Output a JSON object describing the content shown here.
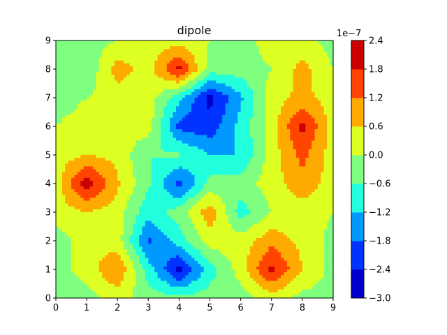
{
  "chart_data": {
    "type": "contourf",
    "title": "dipole",
    "xlabel": "",
    "ylabel": "",
    "xlim": [
      0,
      9
    ],
    "ylim": [
      0,
      9
    ],
    "x_ticks": [
      "0",
      "1",
      "2",
      "3",
      "4",
      "5",
      "6",
      "7",
      "8",
      "9"
    ],
    "y_ticks": [
      "0",
      "1",
      "2",
      "3",
      "4",
      "5",
      "6",
      "7",
      "8",
      "9"
    ],
    "colorbar": {
      "offset_label": "1e−7",
      "tick_labels": [
        "−3.0",
        "−2.4",
        "−1.8",
        "−1.2",
        "−0.6",
        "0.0",
        "0.6",
        "1.2",
        "1.8",
        "2.4"
      ],
      "levels": [
        -3.0,
        -2.4,
        -1.8,
        -1.2,
        -0.6,
        0.0,
        0.6,
        1.2,
        1.8,
        2.4
      ],
      "colors": [
        "#0000cc",
        "#0033ff",
        "#0099ff",
        "#22ffdd",
        "#7fff7f",
        "#ddff22",
        "#ffaa00",
        "#ff4400",
        "#cc0000"
      ]
    },
    "colormap": "jet",
    "grid_x": [
      0,
      1,
      2,
      3,
      4,
      5,
      6,
      7,
      8,
      9
    ],
    "grid_y": [
      0,
      1,
      2,
      3,
      4,
      5,
      6,
      7,
      8,
      9
    ],
    "z_rows_bottom_to_top": [
      [
        -0.3,
        -0.3,
        0.3,
        -0.3,
        -0.5,
        -0.3,
        -0.3,
        0.3,
        -0.2,
        -0.2
      ],
      [
        -0.3,
        0.3,
        1.2,
        -0.9,
        -2.6,
        -0.9,
        0.3,
        2.0,
        0.6,
        -0.2
      ],
      [
        -0.3,
        0.3,
        0.3,
        -1.9,
        -0.9,
        0.3,
        0.3,
        1.0,
        0.4,
        -0.2
      ],
      [
        0.3,
        0.6,
        0.3,
        -1.0,
        -0.3,
        1.0,
        -0.9,
        0.0,
        0.3,
        0.0
      ],
      [
        0.3,
        2.2,
        0.7,
        -0.5,
        -2.1,
        -0.4,
        -0.3,
        0.3,
        1.0,
        0.3
      ],
      [
        0.3,
        0.6,
        0.4,
        -0.6,
        -0.5,
        -1.2,
        -1.2,
        0.3,
        1.4,
        0.3
      ],
      [
        0.0,
        0.3,
        0.3,
        0.3,
        -2.0,
        -2.2,
        -1.0,
        0.3,
        2.0,
        0.3
      ],
      [
        -0.3,
        0.0,
        0.3,
        0.3,
        -1.0,
        -2.6,
        -1.3,
        0.3,
        0.8,
        0.3
      ],
      [
        0.0,
        -0.5,
        0.9,
        0.3,
        2.0,
        -0.3,
        -0.3,
        0.0,
        0.8,
        0.0
      ],
      [
        -0.3,
        -0.3,
        0.0,
        0.3,
        0.3,
        0.0,
        -0.3,
        0.3,
        0.3,
        -0.3
      ]
    ]
  }
}
